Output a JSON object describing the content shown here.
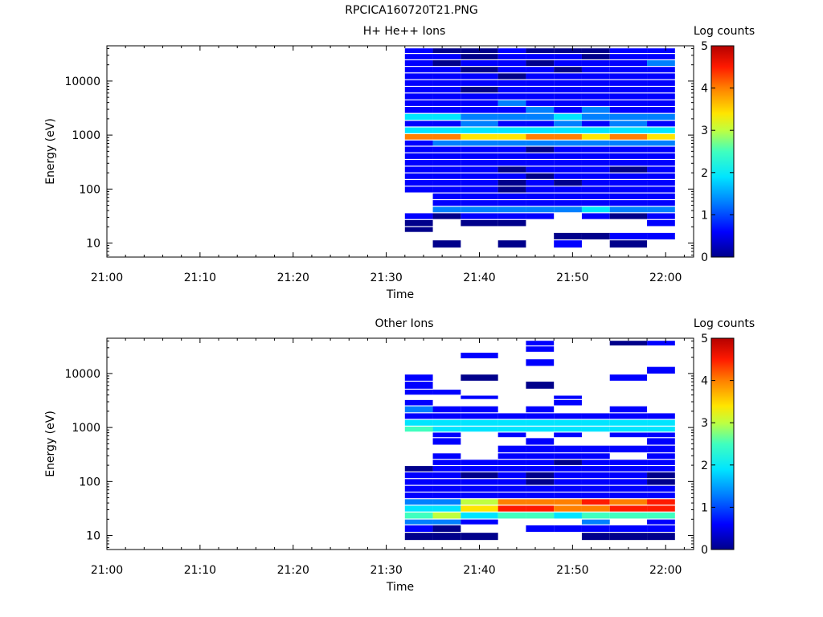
{
  "page_title": "RPCICA160720T21.PNG",
  "colormap": [
    "#00008b",
    "#0000ff",
    "#0080ff",
    "#00e5ff",
    "#40ffbf",
    "#bfff40",
    "#ffe500",
    "#ff8000",
    "#ff1a00",
    "#b40000"
  ],
  "chart_data": [
    {
      "type": "heatmap",
      "title": "H+ He++ Ions",
      "xlabel": "Time",
      "ylabel": "Energy (eV)",
      "colorbar_label": "Log counts",
      "colorbar_ticks": [
        "0",
        "1",
        "2",
        "3",
        "4",
        "5"
      ],
      "clim": [
        0,
        5
      ],
      "y_scale": "log",
      "ylim": [
        5.5,
        45000
      ],
      "xlim": [
        "21:00",
        "22:03"
      ],
      "xticks": [
        "21:00",
        "21:10",
        "21:20",
        "21:30",
        "21:40",
        "21:50",
        "22:00"
      ],
      "yticks": [
        "10",
        "100",
        "1000",
        "10000"
      ],
      "time_bins": [
        "21:32",
        "21:35",
        "21:38",
        "21:42",
        "21:45",
        "21:48",
        "21:51",
        "21:54",
        "21:58",
        "22:01"
      ],
      "rows": [
        {
          "e": 36000,
          "v": [
            0.6,
            0.3,
            0.2,
            0.5,
            0.3,
            0.4,
            0.2,
            0.6,
            0.8
          ]
        },
        {
          "e": 28000,
          "v": [
            0.6,
            0.5,
            0.3,
            0.6,
            0.5,
            0.6,
            0.4,
            0.8,
            0.9
          ]
        },
        {
          "e": 21000,
          "v": [
            0.8,
            0.4,
            0.6,
            0.8,
            0.3,
            0.5,
            0.7,
            0.5,
            1.0
          ]
        },
        {
          "e": 16000,
          "v": [
            0.6,
            0.7,
            0.4,
            0.6,
            0.8,
            0.3,
            0.6,
            0.9,
            0.7
          ]
        },
        {
          "e": 12000,
          "v": [
            0.7,
            0.5,
            0.8,
            0.4,
            0.6,
            0.8,
            0.5,
            0.6,
            0.8
          ]
        },
        {
          "e": 9000,
          "v": [
            0.5,
            0.8,
            0.6,
            0.9,
            0.5,
            0.6,
            0.8,
            0.7,
            0.6
          ]
        },
        {
          "e": 6800,
          "v": [
            0.7,
            0.6,
            0.3,
            0.7,
            0.8,
            0.5,
            0.6,
            0.9,
            0.7
          ]
        },
        {
          "e": 5100,
          "v": [
            0.6,
            0.9,
            0.7,
            0.8,
            0.6,
            0.7,
            0.9,
            0.6,
            0.8
          ]
        },
        {
          "e": 3800,
          "v": [
            0.8,
            0.6,
            0.9,
            1.0,
            0.7,
            0.9,
            0.7,
            0.8,
            0.9
          ]
        },
        {
          "e": 2900,
          "v": [
            0.7,
            0.9,
            0.8,
            0.9,
            1.0,
            0.8,
            1.0,
            0.9,
            0.8
          ]
        },
        {
          "e": 2100,
          "v": [
            1.7,
            1.9,
            1.0,
            1.1,
            1.0,
            1.5,
            1.0,
            1.1,
            1.2
          ]
        },
        {
          "e": 1600,
          "v": [
            0.9,
            0.8,
            1.0,
            0.8,
            0.9,
            1.0,
            0.9,
            1.0,
            0.9
          ]
        },
        {
          "e": 1200,
          "v": [
            1.8,
            1.9,
            1.9,
            1.8,
            1.7,
            1.9,
            1.8,
            1.8,
            1.8
          ]
        },
        {
          "e": 900,
          "v": [
            3.9,
            3.8,
            3.2,
            3.4,
            3.6,
            3.5,
            3.4,
            3.7,
            3.3
          ]
        },
        {
          "e": 700,
          "v": [
            0.9,
            1.3,
            1.4,
            1.2,
            1.3,
            1.2,
            1.3,
            1.2,
            1.3
          ]
        },
        {
          "e": 530,
          "v": [
            0.7,
            0.6,
            0.5,
            0.8,
            0.4,
            0.7,
            0.6,
            0.9,
            0.5
          ]
        },
        {
          "e": 400,
          "v": [
            0.6,
            0.8,
            0.7,
            0.5,
            0.6,
            0.5,
            0.8,
            0.6,
            0.7
          ]
        },
        {
          "e": 300,
          "v": [
            0.7,
            0.5,
            0.8,
            0.6,
            0.7,
            0.6,
            0.5,
            0.7,
            0.8
          ]
        },
        {
          "e": 225,
          "v": [
            0.6,
            0.9,
            0.5,
            0.3,
            0.6,
            0.8,
            0.6,
            0.4,
            0.6
          ]
        },
        {
          "e": 170,
          "v": [
            0.8,
            0.6,
            0.7,
            0.8,
            0.4,
            0.5,
            0.7,
            0.6,
            0.9
          ]
        },
        {
          "e": 128,
          "v": [
            0.5,
            0.7,
            0.6,
            0.2,
            0.8,
            0.3,
            0.6,
            0.8,
            0.5
          ]
        },
        {
          "e": 96,
          "v": [
            0.7,
            0.8,
            0.5,
            0.3,
            0.6,
            0.7,
            0.5,
            0.7,
            0.6
          ]
        },
        {
          "e": 72,
          "v": [
            null,
            0.6,
            0.8,
            0.7,
            0.5,
            0.8,
            0.7,
            0.6,
            0.7
          ]
        },
        {
          "e": 54,
          "v": [
            null,
            0.9,
            0.7,
            0.9,
            0.8,
            0.9,
            0.8,
            0.9,
            0.8
          ]
        },
        {
          "e": 41,
          "v": [
            null,
            1.1,
            1.2,
            1.3,
            1.4,
            1.3,
            1.5,
            1.2,
            1.4
          ]
        },
        {
          "e": 31,
          "v": [
            0.5,
            0.3,
            0.6,
            0.6,
            0.5,
            null,
            0.6,
            0.3,
            0.5
          ]
        },
        {
          "e": 23,
          "v": [
            0.3,
            null,
            0.2,
            0.3,
            null,
            null,
            null,
            null,
            0.6
          ]
        },
        {
          "e": 17,
          "v": [
            0.1,
            null,
            null,
            null,
            null,
            null,
            null,
            null,
            null
          ]
        },
        {
          "e": 14,
          "v": [
            null,
            null,
            null,
            null,
            null,
            0.3,
            0.2,
            0.6,
            0.7
          ]
        },
        {
          "e": 9,
          "v": [
            null,
            0.3,
            null,
            0.3,
            null,
            0.5,
            null,
            0.2,
            null
          ]
        }
      ]
    },
    {
      "type": "heatmap",
      "title": "Other Ions",
      "xlabel": "Time",
      "ylabel": "Energy (eV)",
      "colorbar_label": "Log counts",
      "colorbar_ticks": [
        "0",
        "1",
        "2",
        "3",
        "4",
        "5"
      ],
      "clim": [
        0,
        5
      ],
      "y_scale": "log",
      "ylim": [
        5.5,
        45000
      ],
      "xlim": [
        "21:00",
        "22:03"
      ],
      "xticks": [
        "21:00",
        "21:10",
        "21:20",
        "21:30",
        "21:40",
        "21:50",
        "22:00"
      ],
      "yticks": [
        "10",
        "100",
        "1000",
        "10000"
      ],
      "time_bins": [
        "21:32",
        "21:35",
        "21:38",
        "21:42",
        "21:45",
        "21:48",
        "21:51",
        "21:54",
        "21:58",
        "22:01"
      ],
      "rows": [
        {
          "e": 36000,
          "v": [
            null,
            null,
            null,
            null,
            0.5,
            null,
            null,
            0.4,
            0.7
          ]
        },
        {
          "e": 28000,
          "v": [
            null,
            null,
            null,
            null,
            0.6,
            null,
            null,
            null,
            null
          ]
        },
        {
          "e": 21000,
          "v": [
            null,
            null,
            0.6,
            null,
            null,
            null,
            null,
            null,
            null
          ]
        },
        {
          "e": 16000,
          "v": [
            null,
            null,
            null,
            null,
            0.5,
            null,
            null,
            null,
            null
          ]
        },
        {
          "e": 11000,
          "v": [
            null,
            null,
            null,
            null,
            null,
            null,
            null,
            null,
            0.5
          ]
        },
        {
          "e": 8300,
          "v": [
            0.6,
            null,
            0.3,
            null,
            null,
            null,
            null,
            0.5,
            null
          ]
        },
        {
          "e": 6000,
          "v": [
            0.5,
            null,
            null,
            null,
            0.4,
            null,
            null,
            null,
            null
          ]
        },
        {
          "e": 4200,
          "v": [
            0.7,
            0.6,
            null,
            null,
            null,
            null,
            null,
            null,
            null
          ]
        },
        {
          "e": 3600,
          "v": [
            null,
            null,
            0.6,
            null,
            null,
            0.5,
            null,
            null,
            null
          ]
        },
        {
          "e": 2900,
          "v": [
            0.6,
            null,
            null,
            null,
            null,
            0.6,
            null,
            null,
            null
          ]
        },
        {
          "e": 2100,
          "v": [
            1.2,
            0.8,
            0.6,
            null,
            0.5,
            null,
            null,
            0.5,
            null
          ]
        },
        {
          "e": 1600,
          "v": [
            0.7,
            0.9,
            0.8,
            0.6,
            0.7,
            0.8,
            0.6,
            0.7,
            0.6
          ]
        },
        {
          "e": 1200,
          "v": [
            1.8,
            1.7,
            1.6,
            1.7,
            1.6,
            1.8,
            1.7,
            1.6,
            1.7
          ]
        },
        {
          "e": 900,
          "v": [
            2.0,
            1.9,
            1.9,
            1.8,
            1.9,
            1.9,
            1.8,
            1.9,
            1.8
          ]
        },
        {
          "e": 720,
          "v": [
            null,
            0.6,
            null,
            0.5,
            null,
            0.6,
            null,
            0.7,
            0.6
          ]
        },
        {
          "e": 560,
          "v": [
            null,
            0.6,
            null,
            null,
            0.5,
            null,
            null,
            null,
            0.5
          ]
        },
        {
          "e": 380,
          "v": [
            null,
            null,
            null,
            0.6,
            0.7,
            0.6,
            0.8,
            0.7,
            0.6
          ]
        },
        {
          "e": 290,
          "v": [
            null,
            0.7,
            null,
            0.5,
            0.6,
            0.8,
            0.6,
            null,
            0.7
          ]
        },
        {
          "e": 220,
          "v": [
            null,
            0.8,
            0.6,
            0.7,
            0.5,
            0.4,
            0.6,
            0.7,
            0.5
          ]
        },
        {
          "e": 170,
          "v": [
            0.4,
            0.7,
            0.5,
            0.6,
            0.5,
            0.5,
            0.7,
            0.5,
            0.6
          ]
        },
        {
          "e": 128,
          "v": [
            0.6,
            0.5,
            0.4,
            0.6,
            0.4,
            0.6,
            0.5,
            0.7,
            0.4
          ]
        },
        {
          "e": 96,
          "v": [
            0.8,
            0.7,
            0.6,
            0.5,
            0.4,
            0.6,
            0.5,
            0.6,
            0.4
          ]
        },
        {
          "e": 72,
          "v": [
            0.7,
            0.8,
            0.7,
            0.6,
            0.5,
            0.6,
            0.7,
            0.6,
            0.5
          ]
        },
        {
          "e": 54,
          "v": [
            0.9,
            0.8,
            0.9,
            0.7,
            0.7,
            0.8,
            0.8,
            0.7,
            0.8
          ]
        },
        {
          "e": 41,
          "v": [
            1.2,
            1.1,
            2.8,
            3.6,
            3.8,
            3.9,
            4.0,
            3.8,
            4.2
          ]
        },
        {
          "e": 31,
          "v": [
            1.6,
            1.9,
            3.2,
            4.2,
            4.1,
            3.8,
            3.7,
            4.0,
            4.3
          ]
        },
        {
          "e": 23,
          "v": [
            2.4,
            2.6,
            1.8,
            2.2,
            2.0,
            1.9,
            2.2,
            2.0,
            2.1
          ]
        },
        {
          "e": 17,
          "v": [
            1.0,
            1.3,
            0.8,
            null,
            null,
            null,
            1.1,
            null,
            0.9
          ]
        },
        {
          "e": 14,
          "v": [
            0.8,
            0.4,
            null,
            null,
            0.6,
            0.5,
            0.7,
            0.6,
            0.5
          ]
        },
        {
          "e": 9,
          "v": [
            0.3,
            0.4,
            0.3,
            null,
            null,
            null,
            0.3,
            0.4,
            0.3
          ]
        }
      ]
    }
  ]
}
